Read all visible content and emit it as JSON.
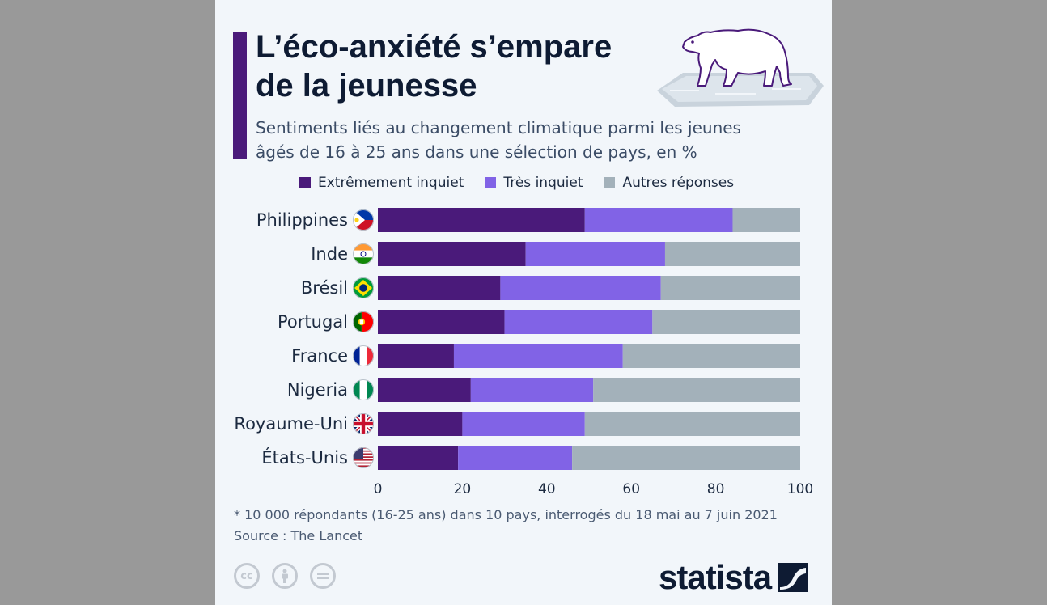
{
  "header": {
    "title_line1": "L’éco-anxiété s’empare",
    "title_line2": "de la jeunesse",
    "subtitle_line1": "Sentiments liés au changement climatique parmi les jeunes",
    "subtitle_line2": "âgés de 16 à 25 ans dans une sélection de pays, en %"
  },
  "footer": {
    "note": "* 10 000 répondants (16-25 ans) dans 10 pays, interrogés du 18 mai au 7 juin 2021",
    "source": "Source : The Lancet",
    "brand": "statista"
  },
  "icons": [
    "polar-bear-icon",
    "cc-icon",
    "by-icon",
    "nd-icon",
    "statista-logo-icon",
    "flag-icons"
  ],
  "chart_data": {
    "type": "bar",
    "orientation": "horizontal",
    "stacked": true,
    "categories": [
      "Philippines",
      "Inde",
      "Brésil",
      "Portugal",
      "France",
      "Nigeria",
      "Royaume-Uni",
      "États-Unis"
    ],
    "series": [
      {
        "name": "Extrêmement inquiet",
        "color": "#4a1a7a",
        "values": [
          49,
          35,
          29,
          30,
          18,
          22,
          20,
          19
        ]
      },
      {
        "name": "Très inquiet",
        "color": "#8163e6",
        "values": [
          35,
          33,
          38,
          35,
          40,
          29,
          29,
          27
        ]
      },
      {
        "name": "Autres réponses",
        "color": "#a3b1ba",
        "values": [
          16,
          32,
          33,
          35,
          42,
          49,
          51,
          54
        ]
      }
    ],
    "xlim": [
      0,
      100
    ],
    "xticks": [
      0,
      20,
      40,
      60,
      80,
      100
    ],
    "legend_position": "top",
    "grid": false
  }
}
